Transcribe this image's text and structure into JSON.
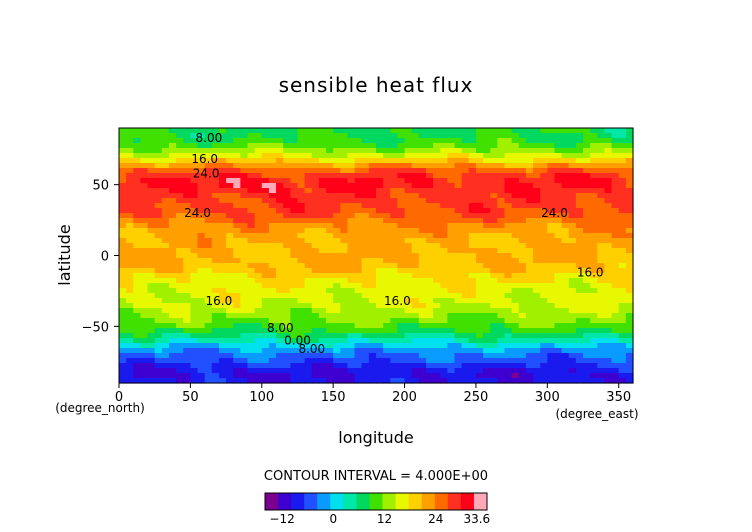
{
  "chart_data": {
    "type": "heatmap",
    "title": "sensible heat flux",
    "xlabel": "longitude",
    "ylabel": "latitude",
    "x_unit": "(degree_east)",
    "y_unit": "(degree_north)",
    "xlim": [
      0,
      360
    ],
    "ylim": [
      -90,
      90
    ],
    "x_ticks": [
      0,
      50,
      100,
      150,
      200,
      250,
      300,
      350
    ],
    "y_ticks": [
      -50,
      0,
      50
    ],
    "contour_interval_text": "CONTOUR INTERVAL = 4.000E+00",
    "colorbar": {
      "tick_labels": [
        "−12",
        "0",
        "12",
        "24",
        "33.6"
      ],
      "tick_values": [
        -12,
        0,
        12,
        24,
        33.6
      ],
      "min": -16,
      "max": 36,
      "colors": [
        "#7a0090",
        "#3d00d0",
        "#1a1aee",
        "#2050ff",
        "#0a9bff",
        "#00e0ee",
        "#00e8a8",
        "#00d860",
        "#40e000",
        "#a0f000",
        "#e8f800",
        "#ffd000",
        "#ffa000",
        "#ff6a00",
        "#ff3020",
        "#ff0018",
        "#ffa8b8"
      ]
    },
    "contour_labels": [
      {
        "text": "8.00",
        "lon": 63,
        "lat": 83
      },
      {
        "text": "16.0",
        "lon": 60,
        "lat": 68
      },
      {
        "text": "24.0",
        "lon": 61,
        "lat": 58
      },
      {
        "text": "24.0",
        "lon": 55,
        "lat": 30
      },
      {
        "text": "24.0",
        "lon": 305,
        "lat": 30
      },
      {
        "text": "16.0",
        "lon": 330,
        "lat": -12
      },
      {
        "text": "16.0",
        "lon": 70,
        "lat": -32
      },
      {
        "text": "16.0",
        "lon": 195,
        "lat": -32
      },
      {
        "text": "8.00",
        "lon": 113,
        "lat": -51
      },
      {
        "text": "0.00",
        "lon": 125,
        "lat": -60
      },
      {
        "text": "8.00",
        "lon": 135,
        "lat": -66
      }
    ],
    "zonal_profile": [
      {
        "lat": -90,
        "value": -9
      },
      {
        "lat": -85,
        "value": -10
      },
      {
        "lat": -80,
        "value": -9
      },
      {
        "lat": -75,
        "value": -6
      },
      {
        "lat": -70,
        "value": -4
      },
      {
        "lat": -65,
        "value": -1
      },
      {
        "lat": -62,
        "value": 2
      },
      {
        "lat": -58,
        "value": 5
      },
      {
        "lat": -54,
        "value": 8
      },
      {
        "lat": -50,
        "value": 10
      },
      {
        "lat": -45,
        "value": 12
      },
      {
        "lat": -40,
        "value": 13
      },
      {
        "lat": -35,
        "value": 15
      },
      {
        "lat": -25,
        "value": 16
      },
      {
        "lat": -15,
        "value": 18
      },
      {
        "lat": -10,
        "value": 20
      },
      {
        "lat": -5,
        "value": 21
      },
      {
        "lat": 0,
        "value": 21
      },
      {
        "lat": 5,
        "value": 21
      },
      {
        "lat": 10,
        "value": 21
      },
      {
        "lat": 15,
        "value": 22
      },
      {
        "lat": 20,
        "value": 23
      },
      {
        "lat": 25,
        "value": 25
      },
      {
        "lat": 30,
        "value": 27
      },
      {
        "lat": 40,
        "value": 28
      },
      {
        "lat": 50,
        "value": 29
      },
      {
        "lat": 55,
        "value": 29
      },
      {
        "lat": 60,
        "value": 26
      },
      {
        "lat": 65,
        "value": 21
      },
      {
        "lat": 70,
        "value": 16
      },
      {
        "lat": 75,
        "value": 12
      },
      {
        "lat": 80,
        "value": 9
      },
      {
        "lat": 85,
        "value": 8
      },
      {
        "lat": 90,
        "value": 8
      }
    ],
    "hotspots": [
      {
        "lon": 80,
        "lat": 50,
        "value": 33
      },
      {
        "lon": 105,
        "lat": 48,
        "value": 34
      },
      {
        "lon": 175,
        "lat": 52,
        "value": 31
      },
      {
        "lon": 310,
        "lat": 55,
        "value": 31
      }
    ]
  }
}
